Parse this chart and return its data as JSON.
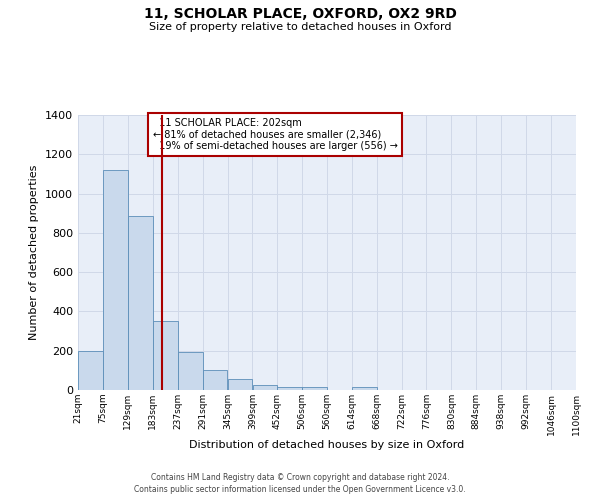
{
  "title": "11, SCHOLAR PLACE, OXFORD, OX2 9RD",
  "subtitle": "Size of property relative to detached houses in Oxford",
  "xlabel": "Distribution of detached houses by size in Oxford",
  "ylabel": "Number of detached properties",
  "bar_color": "#c9d9ec",
  "bar_edgecolor": "#5b8db8",
  "background_color": "#e8eef8",
  "bin_edges": [
    21,
    75,
    129,
    183,
    237,
    291,
    345,
    399,
    452,
    506,
    560,
    614,
    668,
    722,
    776,
    830,
    884,
    938,
    992,
    1046,
    1100
  ],
  "bin_labels": [
    "21sqm",
    "75sqm",
    "129sqm",
    "183sqm",
    "237sqm",
    "291sqm",
    "345sqm",
    "399sqm",
    "452sqm",
    "506sqm",
    "560sqm",
    "614sqm",
    "668sqm",
    "722sqm",
    "776sqm",
    "830sqm",
    "884sqm",
    "938sqm",
    "992sqm",
    "1046sqm",
    "1100sqm"
  ],
  "counts": [
    197,
    1120,
    884,
    350,
    192,
    100,
    55,
    25,
    17,
    13,
    0,
    13,
    0,
    0,
    0,
    0,
    0,
    0,
    0,
    0
  ],
  "property_size": 202,
  "property_label": "11 SCHOLAR PLACE: 202sqm",
  "pct_smaller": 81,
  "n_smaller": 2346,
  "pct_larger_semi": 19,
  "n_larger_semi": 556,
  "vline_color": "#aa0000",
  "annotation_box_edgecolor": "#aa0000",
  "ylim": [
    0,
    1400
  ],
  "yticks": [
    0,
    200,
    400,
    600,
    800,
    1000,
    1200,
    1400
  ],
  "footer_line1": "Contains HM Land Registry data © Crown copyright and database right 2024.",
  "footer_line2": "Contains public sector information licensed under the Open Government Licence v3.0."
}
